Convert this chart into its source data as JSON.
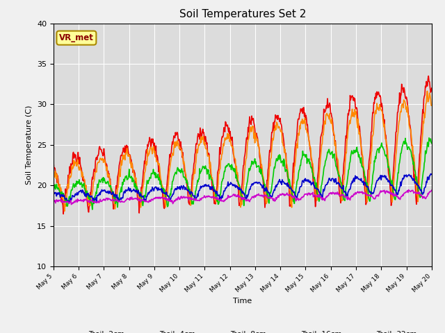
{
  "title": "Soil Temperatures Set 2",
  "xlabel": "Time",
  "ylabel": "Soil Temperature (C)",
  "ylim": [
    10,
    40
  ],
  "xlim": [
    0,
    360
  ],
  "background_color": "#dcdcdc",
  "fig_facecolor": "#f0f0f0",
  "annotation_text": "VR_met",
  "annotation_bg": "#ffff99",
  "annotation_border": "#aa8800",
  "series_colors": {
    "Tsoil -2cm": "#ee0000",
    "Tsoil -4cm": "#ff8800",
    "Tsoil -8cm": "#00cc00",
    "Tsoil -16cm": "#0000cc",
    "Tsoil -32cm": "#cc00cc"
  },
  "xtick_labels": [
    "May 5",
    "May 6",
    "May 7",
    "May 8",
    "May 9",
    "May 10",
    "May 11",
    "May 12",
    "May 13",
    "May 14",
    "May 15",
    "May 16",
    "May 17",
    "May 18",
    "May 19",
    "May 20"
  ],
  "xtick_positions": [
    0,
    24,
    48,
    72,
    96,
    120,
    144,
    168,
    192,
    216,
    240,
    264,
    288,
    312,
    336,
    360
  ],
  "ytick_positions": [
    10,
    15,
    20,
    25,
    30,
    35,
    40
  ],
  "grid_color": "#ffffff",
  "linewidth": 1.2
}
